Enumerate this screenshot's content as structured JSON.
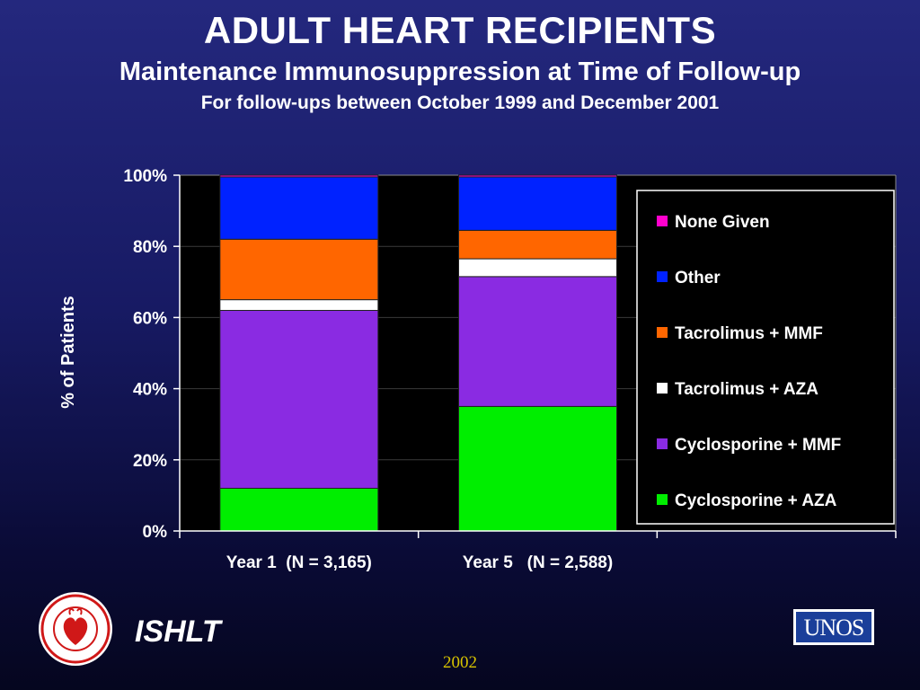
{
  "header": {
    "title": "ADULT HEART RECIPIENTS",
    "subtitle": "Maintenance Immunosuppression at Time of Follow-up",
    "subtitle2": "For follow-ups between October 1999 and December 2001"
  },
  "footer": {
    "org": "ISHLT",
    "year": "2002",
    "unos_logo_text": "UNOS",
    "ishlt_logo_text": "International Society for Heart & Lung Transplantation"
  },
  "chart_data": {
    "type": "bar",
    "stacked": true,
    "ylabel": "% of Patients",
    "xlabel": "",
    "ylim": [
      0,
      100
    ],
    "yticks": [
      "0%",
      "20%",
      "40%",
      "60%",
      "80%",
      "100%"
    ],
    "grid": true,
    "legend_position": "right",
    "categories": [
      "Year 1  (N = 3,165)",
      "Year 5   (N = 2,588)"
    ],
    "series": [
      {
        "name": "Cyclosporine + AZA",
        "color": "#00ee00",
        "values": [
          12,
          35
        ]
      },
      {
        "name": "Cyclosporine + MMF",
        "color": "#8a2be2",
        "values": [
          50,
          36.5
        ]
      },
      {
        "name": "Tacrolimus + AZA",
        "color": "#ffffff",
        "values": [
          3,
          5
        ]
      },
      {
        "name": "Tacrolimus + MMF",
        "color": "#ff6600",
        "values": [
          17,
          8
        ]
      },
      {
        "name": "Other",
        "color": "#0022ff",
        "values": [
          17.5,
          15
        ]
      },
      {
        "name": "None Given",
        "color": "#ff00cc",
        "values": [
          0.5,
          0.5
        ]
      }
    ],
    "legend_order": [
      "None Given",
      "Other",
      "Tacrolimus + MMF",
      "Tacrolimus + AZA",
      "Cyclosporine + MMF",
      "Cyclosporine + AZA"
    ]
  }
}
